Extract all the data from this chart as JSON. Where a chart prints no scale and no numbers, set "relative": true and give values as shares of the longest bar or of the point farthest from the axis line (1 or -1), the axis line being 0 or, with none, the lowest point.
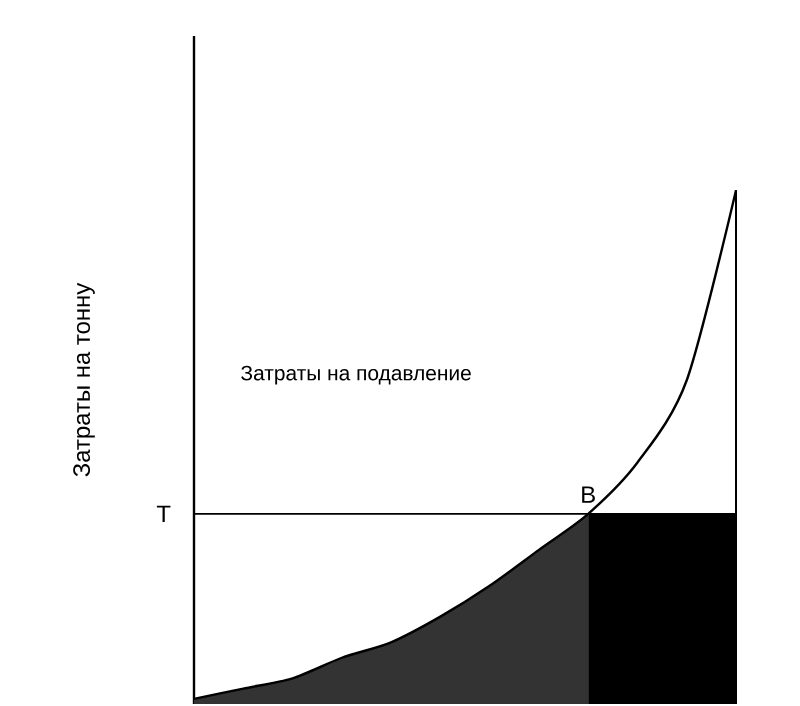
{
  "chart_data": {
    "type": "area",
    "relative": true,
    "ylabel": "Затраты на тонну",
    "categories": [
      null,
      null,
      null,
      null,
      null,
      null,
      null,
      null,
      null,
      null,
      null,
      null
    ],
    "series": [
      {
        "color": "#333333",
        "values": [
          0.01,
          0.03,
          0.05,
          0.09,
          0.12,
          0.17,
          0.23,
          0.3,
          0.37,
          null,
          null,
          null
        ]
      },
      {
        "color": "#000000",
        "values": [
          null,
          null,
          null,
          null,
          null,
          null,
          null,
          null,
          0.37,
          0.37,
          0.37,
          0.37
        ]
      },
      {
        "type": "line",
        "color": "#000000",
        "values": [
          0.01,
          0.03,
          0.05,
          0.09,
          0.12,
          0.17,
          0.23,
          0.3,
          0.37,
          0.47,
          0.63,
          1.0
        ]
      }
    ],
    "ref_lines": [
      {
        "axis": "y",
        "value": 0.37,
        "label": "T"
      }
    ],
    "annotations": [
      "Затраты на подавление",
      {
        "text": "B",
        "y": 0.37
      }
    ]
  }
}
